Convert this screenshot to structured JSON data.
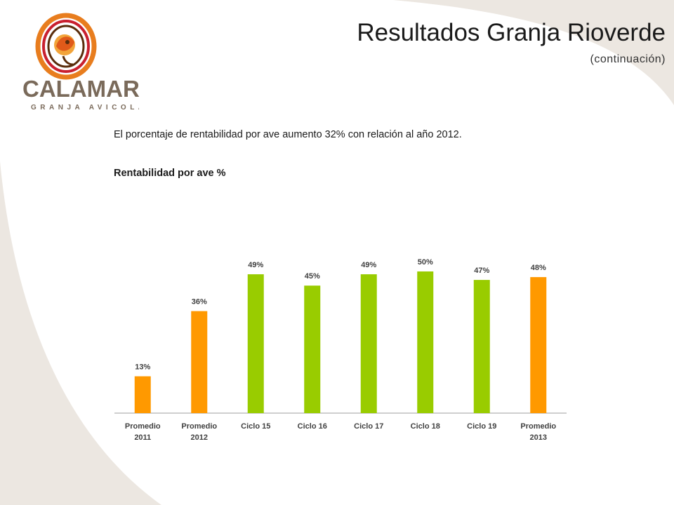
{
  "logo": {
    "brand": "CALAMAR",
    "tagline": "GRANJA AVICOLA"
  },
  "header": {
    "title": "Resultados Granja Rioverde",
    "subtitle": "(continuación)"
  },
  "body_text": "El porcentaje de rentabilidad por ave aumento 32% con relación al año 2012.",
  "chart_caption": "Rentabilidad por ave %",
  "colors": {
    "orange": "#ff9900",
    "green": "#99cc00",
    "background_swoosh": "#ece7e1",
    "axis": "#bfbfbf"
  },
  "chart_data": {
    "type": "bar",
    "title": "Rentabilidad por ave %",
    "categories": [
      [
        "Promedio",
        "2011"
      ],
      [
        "Promedio",
        "2012"
      ],
      [
        "Ciclo 15"
      ],
      [
        "Ciclo 16"
      ],
      [
        "Ciclo 17"
      ],
      [
        "Ciclo 18"
      ],
      [
        "Ciclo 19"
      ],
      [
        "Promedio",
        "2013"
      ]
    ],
    "values": [
      13,
      36,
      49,
      45,
      49,
      50,
      47,
      48
    ],
    "data_labels": [
      "13%",
      "36%",
      "49%",
      "45%",
      "49%",
      "50%",
      "47%",
      "48%"
    ],
    "bar_colors": [
      "orange",
      "orange",
      "green",
      "green",
      "green",
      "green",
      "green",
      "orange"
    ],
    "ylim": [
      0,
      55
    ],
    "grid": false,
    "legend": "none"
  }
}
